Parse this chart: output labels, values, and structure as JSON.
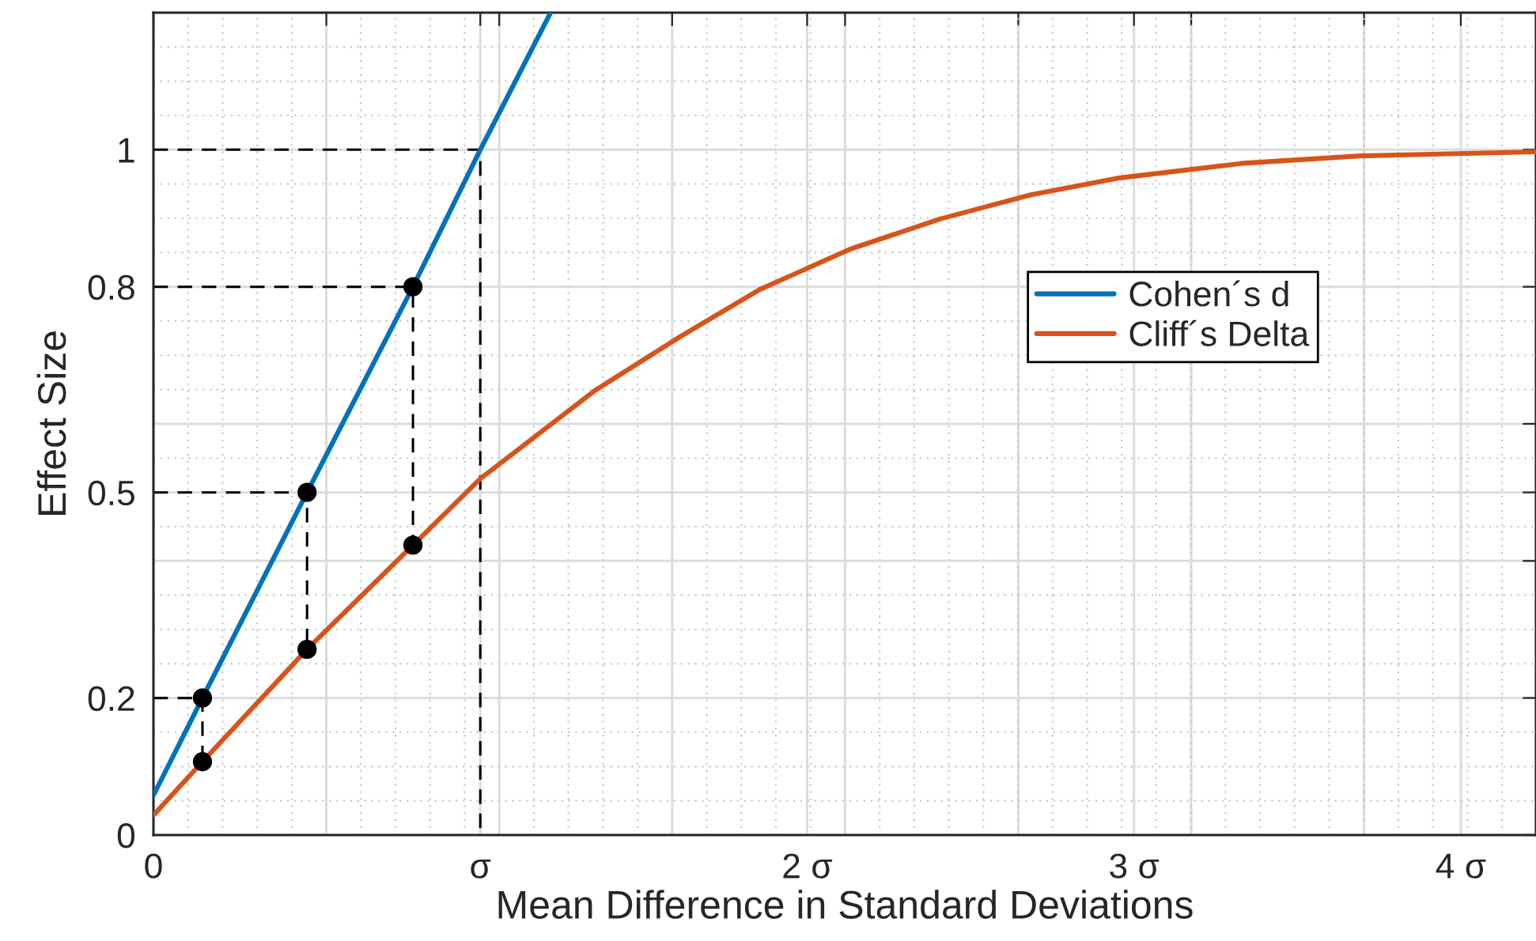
{
  "chart_data": {
    "type": "line",
    "xlabel": "Mean Difference in Standard Deviations",
    "ylabel": "Effect Size",
    "xlim": [
      0,
      4.23
    ],
    "ylim": [
      0,
      1.2
    ],
    "xticks": [
      0,
      {
        "value": 0.529,
        "label": null
      },
      {
        "value": 1,
        "label": "σ"
      },
      {
        "value": 1.058,
        "label": null
      },
      {
        "value": 1.587,
        "label": null
      },
      {
        "value": 2,
        "label": "2 σ"
      },
      {
        "value": 2.116,
        "label": null
      },
      {
        "value": 2.646,
        "label": null
      },
      {
        "value": 3,
        "label": "3 σ"
      },
      {
        "value": 3.175,
        "label": null
      },
      {
        "value": 3.704,
        "label": null
      },
      {
        "value": 4,
        "label": "4 σ"
      }
    ],
    "yticks": [
      0,
      0.2,
      {
        "value": 0.4,
        "label": null
      },
      0.5,
      {
        "value": 0.6,
        "label": null
      },
      0.8,
      1
    ],
    "grid": true,
    "legend": "right",
    "line_style": "solid",
    "marker": "none",
    "series": [
      {
        "name": "Cohen´s d",
        "color": "#0072bd",
        "x": [
          0,
          0.15,
          0.47,
          0.794,
          1.0,
          1.215
        ],
        "values": [
          0.058,
          0.2,
          0.5,
          0.8,
          1.0,
          1.2
        ]
      },
      {
        "name": "Cliff´s Delta",
        "color": "#d95319",
        "x": [
          0,
          0.15,
          0.47,
          0.794,
          1.0,
          1.349,
          1.614,
          1.855,
          2.132,
          2.407,
          2.683,
          2.958,
          3.328,
          3.693,
          4.228
        ],
        "values": [
          0.029,
          0.107,
          0.271,
          0.423,
          0.52,
          0.648,
          0.728,
          0.796,
          0.855,
          0.899,
          0.934,
          0.959,
          0.98,
          0.991,
          0.997
        ]
      },
      {
        "type": "line",
        "color": "#000000",
        "line_style": "dashed",
        "x": [
          0,
          0.15,
          0.15
        ],
        "values": [
          0.2,
          0.2,
          0.107
        ]
      },
      {
        "type": "line",
        "color": "#000000",
        "line_style": "dashed",
        "x": [
          0,
          0.47,
          0.47
        ],
        "values": [
          0.5,
          0.5,
          0.271
        ]
      },
      {
        "type": "line",
        "color": "#000000",
        "line_style": "dashed",
        "x": [
          0,
          0.794,
          0.794
        ],
        "values": [
          0.8,
          0.8,
          0.423
        ]
      },
      {
        "type": "line",
        "color": "#000000",
        "line_style": "dashed",
        "x": [
          0,
          1.0,
          1.0
        ],
        "values": [
          1.0,
          1.0,
          0
        ]
      },
      {
        "type": "scatter",
        "color": "#000000",
        "marker": "circle",
        "x": [
          0.15,
          0.15,
          0.47,
          0.47,
          0.794,
          0.794
        ],
        "values": [
          0.2,
          0.107,
          0.5,
          0.271,
          0.8,
          0.423
        ]
      }
    ]
  }
}
